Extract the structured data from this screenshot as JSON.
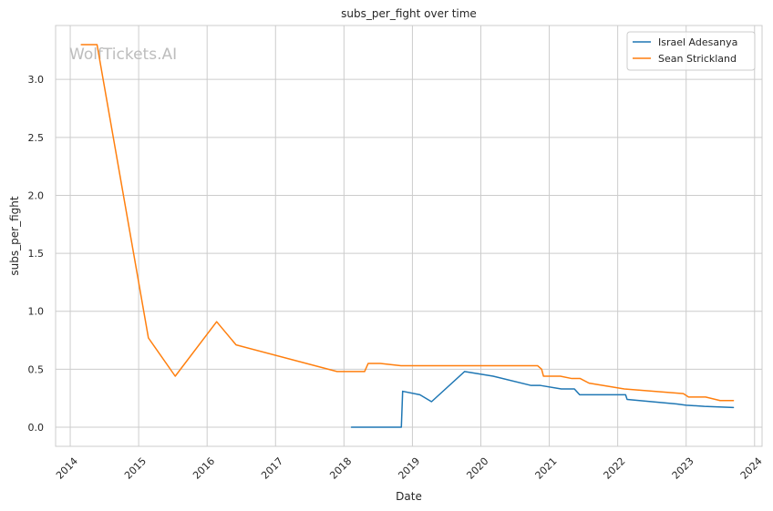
{
  "chart_data": {
    "type": "line",
    "title": "subs_per_fight over time",
    "xlabel": "Date",
    "ylabel": "subs_per_fight",
    "x_ticks": [
      "2014",
      "2015",
      "2016",
      "2017",
      "2018",
      "2019",
      "2020",
      "2021",
      "2022",
      "2023",
      "2024"
    ],
    "y_ticks": [
      "0.0",
      "0.5",
      "1.0",
      "1.5",
      "2.0",
      "2.5",
      "3.0"
    ],
    "xlim": [
      "2013-10-15",
      "2024-02-10"
    ],
    "ylim": [
      -0.165,
      3.465
    ],
    "grid": true,
    "legend_position": "top-right",
    "watermark": "WolfTickets.AI",
    "series": [
      {
        "name": "Israel Adesanya",
        "color": "#1f77b4",
        "points": [
          [
            "2018-02-10",
            0.0
          ],
          [
            "2018-04-14",
            0.0
          ],
          [
            "2018-07-07",
            0.0
          ],
          [
            "2018-11-03",
            0.0
          ],
          [
            "2018-11-10",
            0.31
          ],
          [
            "2019-02-10",
            0.28
          ],
          [
            "2019-04-13",
            0.22
          ],
          [
            "2019-10-06",
            0.48
          ],
          [
            "2020-03-07",
            0.44
          ],
          [
            "2020-09-26",
            0.36
          ],
          [
            "2020-11-15",
            0.36
          ],
          [
            "2021-03-06",
            0.33
          ],
          [
            "2021-05-15",
            0.33
          ],
          [
            "2021-06-12",
            0.28
          ],
          [
            "2022-02-12",
            0.28
          ],
          [
            "2022-02-20",
            0.24
          ],
          [
            "2022-07-02",
            0.22
          ],
          [
            "2022-11-12",
            0.2
          ],
          [
            "2023-01-01",
            0.19
          ],
          [
            "2023-04-08",
            0.18
          ],
          [
            "2023-09-10",
            0.17
          ]
        ]
      },
      {
        "name": "Sean Strickland",
        "color": "#ff7f0e",
        "points": [
          [
            "2014-03-01",
            3.3
          ],
          [
            "2014-05-24",
            3.3
          ],
          [
            "2015-02-22",
            0.77
          ],
          [
            "2015-07-15",
            0.44
          ],
          [
            "2016-02-21",
            0.91
          ],
          [
            "2016-06-04",
            0.71
          ],
          [
            "2017-11-25",
            0.48
          ],
          [
            "2018-04-21",
            0.48
          ],
          [
            "2018-05-10",
            0.55
          ],
          [
            "2018-07-14",
            0.55
          ],
          [
            "2018-11-01",
            0.53
          ],
          [
            "2020-10-31",
            0.53
          ],
          [
            "2020-11-21",
            0.5
          ],
          [
            "2020-12-01",
            0.44
          ],
          [
            "2021-03-01",
            0.44
          ],
          [
            "2021-05-01",
            0.42
          ],
          [
            "2021-06-15",
            0.42
          ],
          [
            "2021-08-01",
            0.38
          ],
          [
            "2022-02-05",
            0.33
          ],
          [
            "2022-10-01",
            0.3
          ],
          [
            "2022-12-17",
            0.29
          ],
          [
            "2023-01-14",
            0.26
          ],
          [
            "2023-04-15",
            0.26
          ],
          [
            "2023-07-01",
            0.23
          ],
          [
            "2023-09-10",
            0.23
          ]
        ]
      }
    ]
  }
}
